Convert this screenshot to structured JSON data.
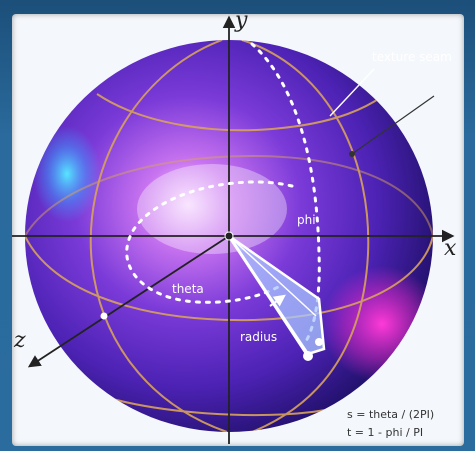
{
  "axes": {
    "x": "x",
    "y": "y",
    "z": "z"
  },
  "labels": {
    "texture_seam": "texture seam",
    "phi": "phi",
    "theta": "theta",
    "radius": "radius"
  },
  "formulas": {
    "s": "s = theta / (2PI)",
    "t": "t = 1 - phi / PI"
  },
  "colors": {
    "sphere_core": "#6a2ad8",
    "sphere_highlight": "#f2c9ff",
    "sphere_edge": "#2a1a8a",
    "magenta_spot": "#ff2ad0",
    "cyan_spot": "#3fd0ff",
    "grid_line": "#d9a25a",
    "axis_line": "#222222",
    "wedge": "#a9c7ff"
  }
}
